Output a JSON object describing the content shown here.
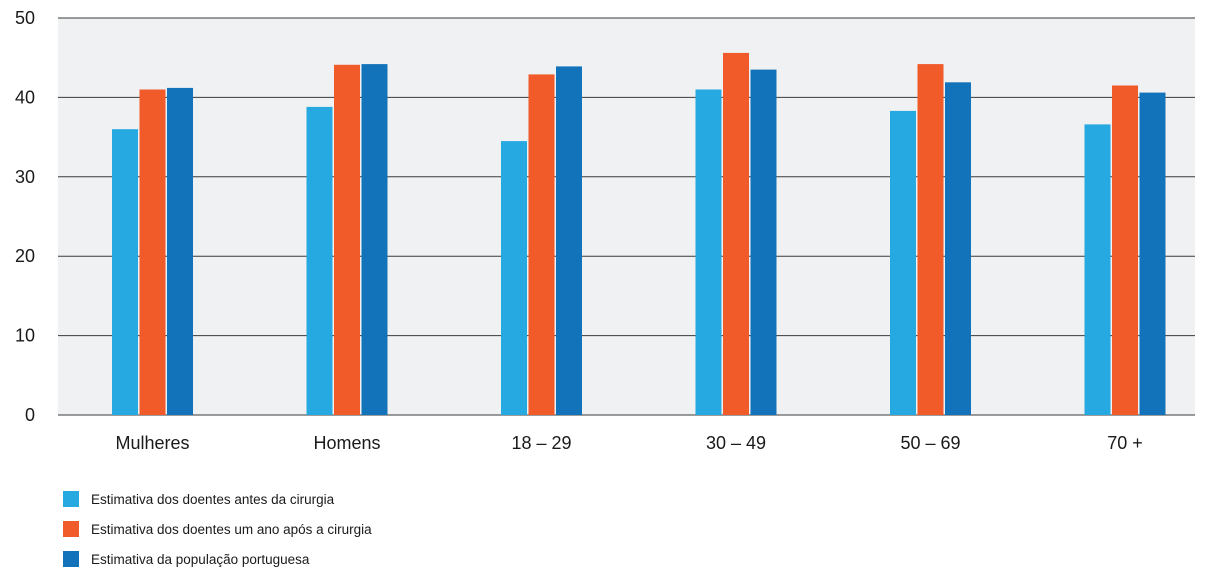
{
  "chart_data": {
    "type": "bar",
    "title": "",
    "xlabel": "",
    "ylabel": "",
    "ylim": [
      0,
      50
    ],
    "yticks": [
      0,
      10,
      20,
      30,
      40,
      50
    ],
    "grid": true,
    "legend_position": "bottom-left",
    "categories": [
      "Mulheres",
      "Homens",
      "18 – 29",
      "30 – 49",
      "50 – 69",
      "70 +"
    ],
    "series": [
      {
        "name": "Estimativa dos doentes antes da cirurgia",
        "color": "#26a9e0",
        "values": [
          36.0,
          38.8,
          34.5,
          41.0,
          38.3,
          36.6
        ]
      },
      {
        "name": "Estimativa dos doentes um ano após a cirurgia",
        "color": "#f15a29",
        "values": [
          41.0,
          44.1,
          42.9,
          45.6,
          44.2,
          41.5
        ]
      },
      {
        "name": "Estimativa da população portuguesa",
        "color": "#1373ba",
        "values": [
          41.2,
          44.2,
          43.9,
          43.5,
          41.9,
          40.6
        ]
      }
    ]
  },
  "colors": {
    "plot_background": "#f0f1f2",
    "gridline": "#3a3a3a"
  }
}
